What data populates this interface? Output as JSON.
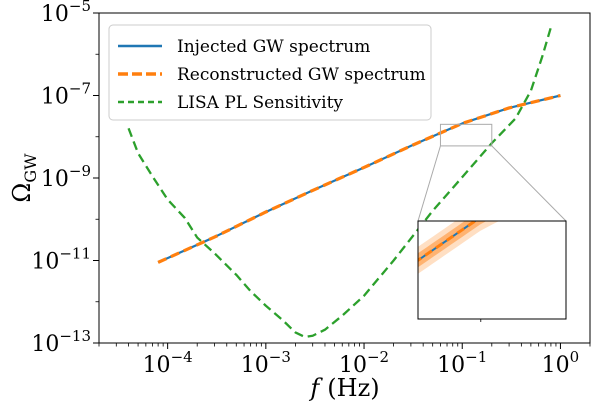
{
  "chart_data": {
    "type": "line",
    "title": "",
    "xlabel": {
      "var": "f",
      "unit": "(Hz)"
    },
    "ylabel": {
      "base": "Ω",
      "sub": "GW"
    },
    "xscale": "log",
    "yscale": "log",
    "xlim": [
      2e-05,
      2.0
    ],
    "ylim": [
      1e-13,
      1e-05
    ],
    "grid": false,
    "legend_position": "top-left",
    "x_ticks": [
      {
        "value": 0.0001,
        "base": "10",
        "exp": "−4"
      },
      {
        "value": 0.001,
        "base": "10",
        "exp": "−3"
      },
      {
        "value": 0.01,
        "base": "10",
        "exp": "−2"
      },
      {
        "value": 0.1,
        "base": "10",
        "exp": "−1"
      },
      {
        "value": 1,
        "base": "10",
        "exp": "0"
      }
    ],
    "y_ticks": [
      {
        "value": 1e-13,
        "base": "10",
        "exp": "−13"
      },
      {
        "value": 1e-11,
        "base": "10",
        "exp": "−11"
      },
      {
        "value": 1e-09,
        "base": "10",
        "exp": "−9"
      },
      {
        "value": 1e-07,
        "base": "10",
        "exp": "−7"
      },
      {
        "value": 1e-05,
        "base": "10",
        "exp": "−5"
      }
    ],
    "series": [
      {
        "name": "Injected GW spectrum",
        "color": "#1f77b4",
        "style": "solid",
        "x": [
          8e-05,
          0.0003,
          0.001,
          0.003,
          0.01,
          0.03,
          0.1,
          0.3,
          1.0
        ],
        "y": [
          9e-12,
          3.7e-11,
          1.5e-10,
          5e-10,
          1.8e-09,
          6e-09,
          2.1e-08,
          5e-08,
          1e-07
        ]
      },
      {
        "name": "Reconstructed GW spectrum",
        "color": "#ff7f0e",
        "style": "dashed",
        "x": [
          8e-05,
          0.0003,
          0.001,
          0.003,
          0.01,
          0.03,
          0.1,
          0.3,
          1.0
        ],
        "y": [
          9e-12,
          3.7e-11,
          1.5e-10,
          5e-10,
          1.8e-09,
          6e-09,
          2.1e-08,
          5e-08,
          1e-07
        ]
      },
      {
        "name": "LISA PL Sensitivity",
        "color": "#2ca02c",
        "style": "dashed",
        "x": [
          4e-05,
          5e-05,
          7e-05,
          0.0001,
          0.00015,
          0.0002,
          0.0003,
          0.0005,
          0.0007,
          0.001,
          0.0015,
          0.002,
          0.0025,
          0.003,
          0.004,
          0.006,
          0.01,
          0.02,
          0.05,
          0.1,
          0.2,
          0.35,
          0.5,
          0.65,
          0.8
        ],
        "y": [
          1.6e-08,
          4e-09,
          1.1e-09,
          3e-10,
          1.07e-10,
          3.6e-11,
          1.5e-11,
          4.5e-12,
          1.8e-12,
          8e-13,
          3.5e-13,
          1.8e-13,
          1.4e-13,
          1.5e-13,
          2.1e-13,
          4.6e-13,
          1.4e-12,
          1e-11,
          1.6e-10,
          1.05e-09,
          7e-09,
          2.8e-08,
          1.3e-07,
          8.5e-07,
          4.5e-06
        ]
      }
    ],
    "inset": {
      "xlim": [
        0.06,
        0.2
      ],
      "ylim": [
        6e-09,
        2e-08
      ],
      "band_color": "#ff7f0e"
    }
  }
}
